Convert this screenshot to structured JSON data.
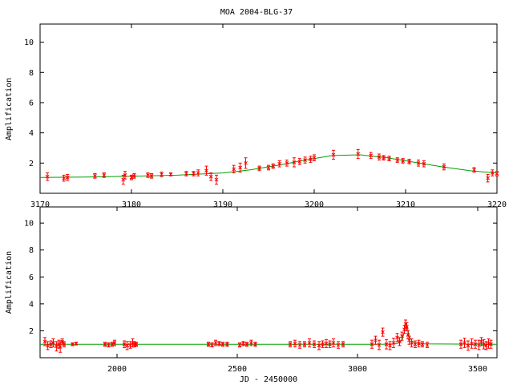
{
  "title": "MOA 2004-BLG-37",
  "chart_data": [
    {
      "type": "scatter",
      "title": "MOA 2004-BLG-37",
      "xlabel": "",
      "ylabel": "Amplification",
      "xlim": [
        3170,
        3220
      ],
      "ylim": [
        0,
        11.2
      ],
      "xticks": [
        3170,
        3180,
        3190,
        3200,
        3210,
        3220
      ],
      "yticks": [
        2,
        4,
        6,
        8,
        10
      ],
      "colors": {
        "points": "#ff0000",
        "errorbars": "#ff0000",
        "model": "#00a000"
      },
      "series": [
        {
          "type": "errorbar",
          "x": [
            3170.8,
            3172.6,
            3173.0,
            3176.0,
            3177.0,
            3179.1,
            3179.3,
            3180.0,
            3180.3,
            3181.8,
            3182.2,
            3183.3,
            3184.3,
            3186.0,
            3186.8,
            3187.3,
            3188.2,
            3188.7,
            3189.3,
            3191.2,
            3191.9,
            3192.5,
            3194.0,
            3195.0,
            3195.5,
            3196.2,
            3197.0,
            3197.8,
            3198.4,
            3199.0,
            3199.6,
            3200.0,
            3202.1,
            3204.8,
            3206.2,
            3207.1,
            3207.6,
            3208.2,
            3209.1,
            3209.7,
            3210.4,
            3211.4,
            3212.0,
            3214.2,
            3217.5,
            3219.0,
            3219.5,
            3220.0
          ],
          "y": [
            1.1,
            1.0,
            1.05,
            1.15,
            1.2,
            0.9,
            1.2,
            1.05,
            1.15,
            1.2,
            1.15,
            1.25,
            1.25,
            1.3,
            1.3,
            1.35,
            1.5,
            1.1,
            0.9,
            1.6,
            1.7,
            2.0,
            1.65,
            1.7,
            1.8,
            1.95,
            2.0,
            2.05,
            2.1,
            2.2,
            2.25,
            2.35,
            2.55,
            2.6,
            2.5,
            2.4,
            2.35,
            2.3,
            2.2,
            2.15,
            2.1,
            2.0,
            1.95,
            1.75,
            1.55,
            1.0,
            1.35,
            1.3
          ],
          "err": [
            0.25,
            0.2,
            0.2,
            0.15,
            0.15,
            0.3,
            0.25,
            0.15,
            0.15,
            0.15,
            0.15,
            0.15,
            0.1,
            0.15,
            0.15,
            0.2,
            0.3,
            0.25,
            0.3,
            0.25,
            0.3,
            0.35,
            0.15,
            0.15,
            0.15,
            0.2,
            0.2,
            0.3,
            0.2,
            0.2,
            0.2,
            0.2,
            0.3,
            0.3,
            0.2,
            0.2,
            0.15,
            0.15,
            0.15,
            0.15,
            0.15,
            0.2,
            0.2,
            0.2,
            0.15,
            0.25,
            0.2,
            0.15
          ]
        },
        {
          "type": "model",
          "x": [
            3170,
            3175,
            3180,
            3185,
            3190,
            3193,
            3196,
            3199,
            3202,
            3205,
            3208,
            3211,
            3214,
            3217,
            3220
          ],
          "y": [
            1.05,
            1.08,
            1.13,
            1.2,
            1.35,
            1.55,
            1.85,
            2.2,
            2.5,
            2.55,
            2.35,
            2.05,
            1.75,
            1.5,
            1.33
          ]
        }
      ]
    },
    {
      "type": "scatter",
      "title": "",
      "xlabel": "JD - 2450000",
      "ylabel": "Amplification",
      "xlim": [
        1680,
        3580
      ],
      "ylim": [
        0,
        11.2
      ],
      "xticks": [
        2000,
        2500,
        3000,
        3500
      ],
      "yticks": [
        2,
        4,
        6,
        8,
        10
      ],
      "colors": {
        "points": "#ff0000",
        "errorbars": "#ff0000",
        "model": "#00a000"
      },
      "series": [
        {
          "type": "errorbar",
          "x": [
            1700,
            1712,
            1725,
            1735,
            1748,
            1758,
            1764,
            1772,
            1780,
            1815,
            1830,
            1950,
            1965,
            1980,
            1990,
            2030,
            2042,
            2055,
            2065,
            2072,
            2080,
            2380,
            2395,
            2410,
            2425,
            2440,
            2458,
            2510,
            2525,
            2540,
            2558,
            2575,
            2720,
            2740,
            2760,
            2780,
            2800,
            2820,
            2840,
            2855,
            2870,
            2885,
            2900,
            2920,
            2940,
            3060,
            3075,
            3090,
            3105,
            3120,
            3135,
            3150,
            3165,
            3175,
            3185,
            3195,
            3200,
            3205,
            3210,
            3215,
            3225,
            3240,
            3255,
            3270,
            3290,
            3430,
            3445,
            3460,
            3475,
            3490,
            3505,
            3515,
            3525,
            3535,
            3545,
            3555
          ],
          "y": [
            1.2,
            0.9,
            1.0,
            1.1,
            0.85,
            1.0,
            0.8,
            1.2,
            1.0,
            1.0,
            1.05,
            1.0,
            0.95,
            1.0,
            1.1,
            1.0,
            0.9,
            0.95,
            1.1,
            1.0,
            1.0,
            1.0,
            0.95,
            1.1,
            1.05,
            1.0,
            1.0,
            0.95,
            1.05,
            1.0,
            1.1,
            1.0,
            1.0,
            1.05,
            0.95,
            1.0,
            1.1,
            1.0,
            0.9,
            1.0,
            1.05,
            1.0,
            1.1,
            0.95,
            1.0,
            1.0,
            1.3,
            0.95,
            1.9,
            1.0,
            0.9,
            1.1,
            1.5,
            1.2,
            1.6,
            2.1,
            2.5,
            2.3,
            1.7,
            1.3,
            1.1,
            1.0,
            1.05,
            1.0,
            0.95,
            1.0,
            1.1,
            0.9,
            1.05,
            1.0,
            0.95,
            1.2,
            1.0,
            0.9,
            1.05,
            1.0
          ],
          "err": [
            0.3,
            0.3,
            0.25,
            0.3,
            0.35,
            0.3,
            0.4,
            0.2,
            0.2,
            0.1,
            0.1,
            0.15,
            0.15,
            0.15,
            0.2,
            0.25,
            0.3,
            0.25,
            0.3,
            0.2,
            0.15,
            0.15,
            0.15,
            0.2,
            0.15,
            0.15,
            0.15,
            0.15,
            0.15,
            0.15,
            0.2,
            0.15,
            0.2,
            0.25,
            0.25,
            0.2,
            0.3,
            0.25,
            0.3,
            0.25,
            0.3,
            0.25,
            0.3,
            0.25,
            0.2,
            0.3,
            0.3,
            0.35,
            0.3,
            0.35,
            0.3,
            0.35,
            0.3,
            0.3,
            0.3,
            0.3,
            0.3,
            0.3,
            0.3,
            0.3,
            0.3,
            0.25,
            0.25,
            0.2,
            0.2,
            0.3,
            0.35,
            0.35,
            0.35,
            0.3,
            0.35,
            0.3,
            0.35,
            0.3,
            0.35,
            0.3
          ]
        },
        {
          "type": "model",
          "x": [
            1680,
            3100,
            3150,
            3170,
            3185,
            3195,
            3202,
            3207,
            3215,
            3230,
            3260,
            3580
          ],
          "y": [
            1.0,
            1.0,
            1.03,
            1.08,
            1.3,
            1.9,
            2.55,
            2.3,
            1.6,
            1.15,
            1.03,
            1.0
          ]
        }
      ]
    }
  ]
}
